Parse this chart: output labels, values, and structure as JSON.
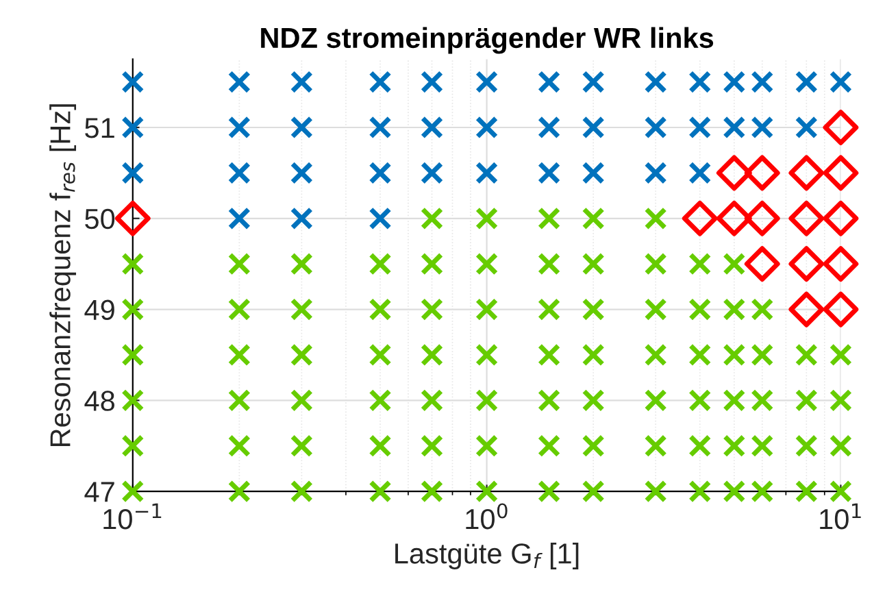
{
  "chart_data": {
    "type": "scatter",
    "title": "NDZ stromeinprägender WR links",
    "xlabel": "Lastgüte G$_{f}$ [1]",
    "ylabel": "Resonanzfrequenz f$_{res}$ [Hz]",
    "log": "x",
    "xlim": [
      0.1,
      10
    ],
    "ylim": [
      47,
      51.75
    ],
    "xticks": [
      {
        "value": 0.1,
        "label": "10$^{−1}$"
      },
      {
        "value": 1,
        "label": "10$^{0}$"
      },
      {
        "value": 10,
        "label": "10$^{1}$"
      }
    ],
    "yticks": [
      47,
      48,
      49,
      50,
      51
    ],
    "grid": true,
    "legend": false,
    "series": [
      {
        "color": "#0072bd",
        "marker": "cross",
        "x": [
          0.1,
          0.1,
          0.1,
          0.2,
          0.2,
          0.2,
          0.2,
          0.3,
          0.3,
          0.3,
          0.3,
          0.5,
          0.5,
          0.5,
          0.5,
          0.7,
          0.7,
          0.7,
          1,
          1,
          1,
          1.5,
          1.5,
          1.5,
          2,
          2,
          2,
          3,
          3,
          3,
          4,
          4,
          4,
          5,
          5,
          6,
          6,
          8,
          8,
          10
        ],
        "values": [
          51.5,
          51,
          50.5,
          51.5,
          51,
          50.5,
          50,
          51.5,
          51,
          50.5,
          50,
          51.5,
          51,
          50.5,
          50,
          51.5,
          51,
          50.5,
          51.5,
          51,
          50.5,
          51.5,
          51,
          50.5,
          51.5,
          51,
          50.5,
          51.5,
          51,
          50.5,
          51.5,
          51,
          50.5,
          51.5,
          51,
          51.5,
          51,
          51.5,
          51,
          51.5
        ]
      },
      {
        "color": "#66cc00",
        "marker": "cross",
        "x": [
          0.1,
          0.1,
          0.1,
          0.1,
          0.1,
          0.1,
          0.2,
          0.2,
          0.2,
          0.2,
          0.2,
          0.2,
          0.3,
          0.3,
          0.3,
          0.3,
          0.3,
          0.3,
          0.5,
          0.5,
          0.5,
          0.5,
          0.5,
          0.5,
          0.7,
          0.7,
          0.7,
          0.7,
          0.7,
          0.7,
          0.7,
          1,
          1,
          1,
          1,
          1,
          1,
          1,
          1.5,
          1.5,
          1.5,
          1.5,
          1.5,
          1.5,
          1.5,
          2,
          2,
          2,
          2,
          2,
          2,
          2,
          3,
          3,
          3,
          3,
          3,
          3,
          3,
          4,
          4,
          4,
          4,
          4,
          4,
          5,
          5,
          5,
          5,
          5,
          5,
          6,
          6,
          6,
          6,
          6,
          8,
          8,
          8,
          8,
          10,
          10,
          10,
          10
        ],
        "values": [
          49.5,
          49,
          48.5,
          48,
          47.5,
          47,
          49.5,
          49,
          48.5,
          48,
          47.5,
          47,
          49.5,
          49,
          48.5,
          48,
          47.5,
          47,
          49.5,
          49,
          48.5,
          48,
          47.5,
          47,
          50,
          49.5,
          49,
          48.5,
          48,
          47.5,
          47,
          50,
          49.5,
          49,
          48.5,
          48,
          47.5,
          47,
          50,
          49.5,
          49,
          48.5,
          48,
          47.5,
          47,
          50,
          49.5,
          49,
          48.5,
          48,
          47.5,
          47,
          50,
          49.5,
          49,
          48.5,
          48,
          47.5,
          47,
          49.5,
          49,
          48.5,
          48,
          47.5,
          47,
          49.5,
          49,
          48.5,
          48,
          47.5,
          47,
          49,
          48.5,
          48,
          47.5,
          47,
          48.5,
          48,
          47.5,
          47,
          48.5,
          48,
          47.5,
          47
        ]
      },
      {
        "color": "#ff0000",
        "marker": "diamond",
        "x": [
          0.1,
          4,
          5,
          5,
          6,
          6,
          6,
          8,
          8,
          8,
          8,
          10,
          10,
          10,
          10,
          10
        ],
        "values": [
          50,
          50,
          50.5,
          50,
          50.5,
          50,
          49.5,
          50.5,
          50,
          49.5,
          49,
          51,
          50.5,
          50,
          49.5,
          49
        ]
      }
    ]
  }
}
